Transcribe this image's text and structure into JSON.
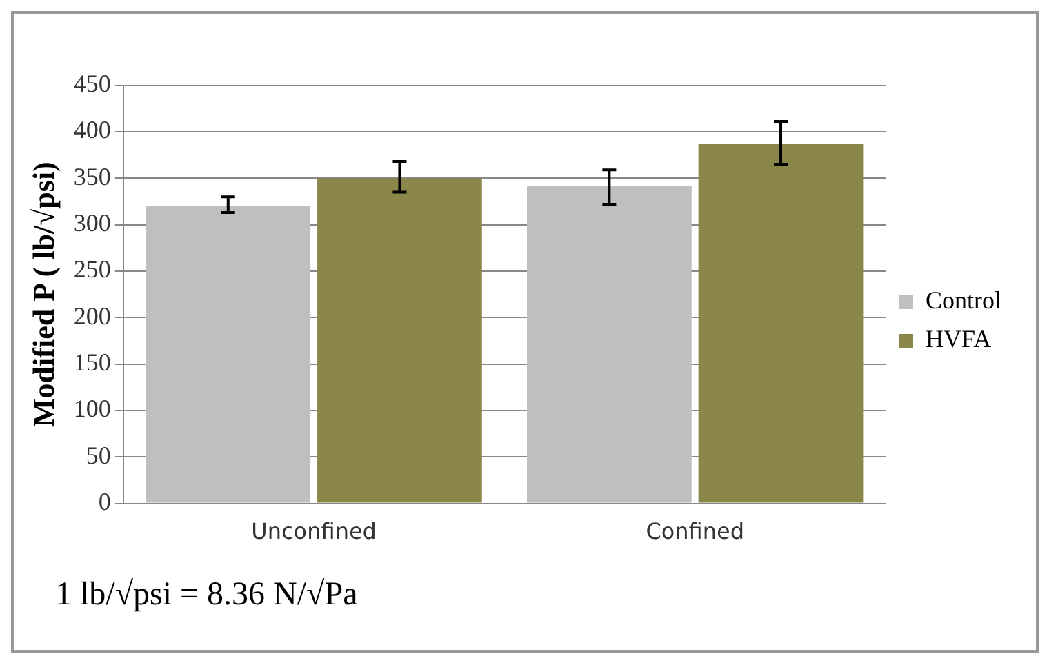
{
  "chart_data": {
    "type": "bar",
    "categories": [
      "Unconfined",
      "Confined"
    ],
    "series": [
      {
        "name": "Control",
        "color": "#bfbfbf",
        "values": [
          320,
          342
        ],
        "errors": [
          [
            313,
            330
          ],
          [
            322,
            359
          ]
        ]
      },
      {
        "name": "HVFA",
        "color": "#8b864a",
        "values": [
          350,
          387
        ],
        "errors": [
          [
            335,
            368
          ],
          [
            365,
            411
          ]
        ]
      }
    ],
    "ylabel": "Modified P ( lb/√psi)",
    "ylim": [
      0,
      450
    ],
    "yticks": [
      0,
      50,
      100,
      150,
      200,
      250,
      300,
      350,
      400,
      450
    ],
    "grid": "y",
    "legend": "right",
    "annotations": [
      "1 lb/√psi = 8.36 N/√Pa"
    ]
  }
}
